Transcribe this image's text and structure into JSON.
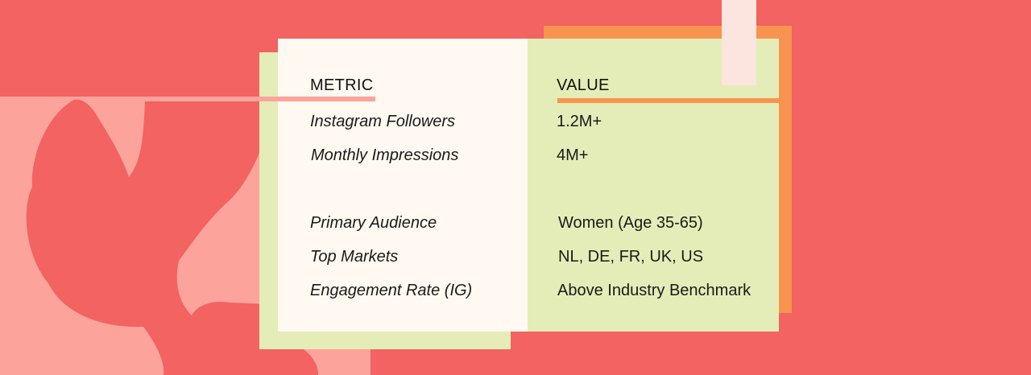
{
  "table": {
    "metric_header": "METRIC",
    "value_header": "VALUE",
    "rows": [
      {
        "metric": "Instagram Followers",
        "value": "1.2M+"
      },
      {
        "metric": "Monthly Impressions",
        "value": "4M+"
      },
      {
        "metric": "Primary Audience",
        "value": "Women (Age 35-65)"
      },
      {
        "metric": "Top Markets",
        "value": "NL, DE, FR, UK, US"
      },
      {
        "metric": "Engagement Rate (IG)",
        "value": "Above Industry Benchmark"
      }
    ]
  },
  "colors": {
    "background_coral": "#f26361",
    "blush_panel": "#fca39b",
    "cream_card": "#fff9f1",
    "pale_green": "#e4edb7",
    "orange_accent": "#f7944f",
    "top_tab": "#fbe5de"
  }
}
